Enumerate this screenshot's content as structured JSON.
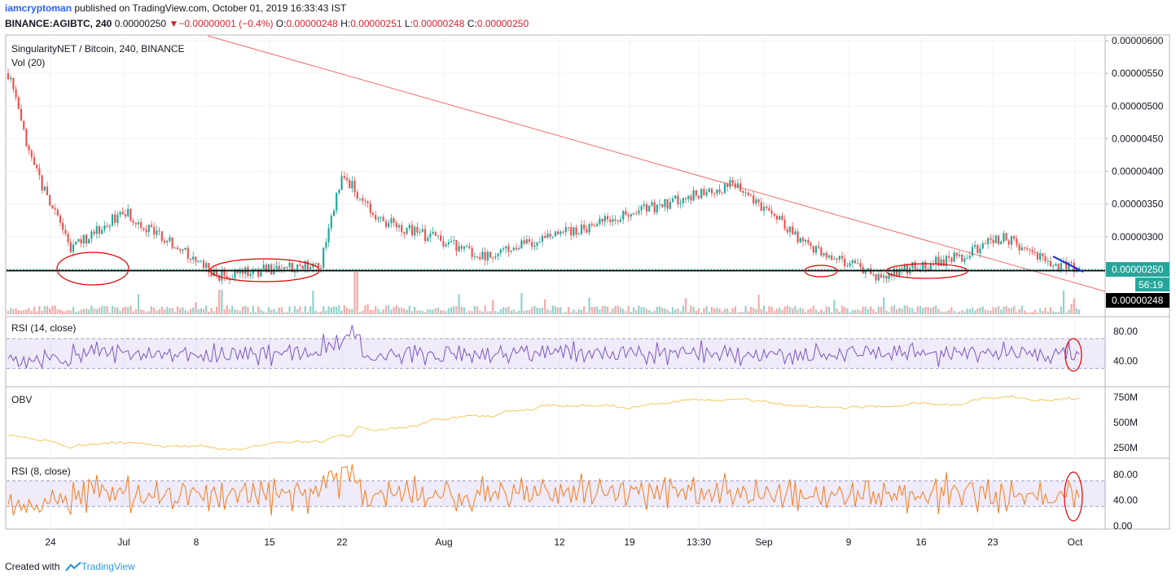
{
  "header": {
    "user": "iamcryptoman",
    "published": "published on TradingView.com, October 01, 2019 16:33:43 IST",
    "symbol": "BINANCE:AGIBTC, 240",
    "price": "0.00000250",
    "change_arrow": "▼",
    "change": "−0.00000001 (−0.4%)",
    "o_label": "O:",
    "o_val": "0.00000248",
    "h_label": "H:",
    "h_val": "0.00000251",
    "l_label": "L:",
    "l_val": "0.00000248",
    "c_label": "C:",
    "c_val": "0.00000250"
  },
  "main_pane": {
    "title": "SingularityNET / Bitcoin, 240, BINANCE",
    "vol_label": "Vol (20)",
    "last_price_badge": "0.00000250",
    "countdown_badge": "56:19",
    "support_badge": "0.00000248"
  },
  "rsi14": {
    "label": "RSI (14, close)"
  },
  "obv": {
    "label": "OBV"
  },
  "rsi8": {
    "label": "RSI (8, close)"
  },
  "footer": {
    "created_with": "Created with",
    "brand": "TradingView"
  },
  "colors": {
    "up": "#26a69a",
    "down": "#ef5350",
    "rsi14": "#7e57c2",
    "obv": "#f7c65a",
    "rsi8": "#f57c1f",
    "trend": "#ef5350",
    "annotation": "#e00000",
    "blue": "#1e22d6"
  },
  "chart_data": [
    {
      "type": "candlestick",
      "title": "SingularityNET / Bitcoin, 240, BINANCE",
      "x_ticks": [
        "24",
        "Jul",
        "8",
        "15",
        "22",
        "Aug",
        "12",
        "19",
        "13:30",
        "Sep",
        "9",
        "16",
        "23",
        "Oct"
      ],
      "y_ticks": [
        "0.00000600",
        "0.00000550",
        "0.00000500",
        "0.00000450",
        "0.00000400",
        "0.00000350",
        "0.00000300",
        "0.00000250"
      ],
      "ylim": [
        2.2e-06,
        6.1e-06
      ],
      "trend_line": {
        "from": [
          "Jun 19",
          5.8e-06
        ],
        "to": [
          "Oct 2",
          2.2e-06
        ]
      },
      "support_level": 2.48e-06,
      "last_price": 2.5e-06,
      "key_points": [
        {
          "x": "Jun 20",
          "close": 5.5e-06
        },
        {
          "x": "Jun 22",
          "close": 4.2e-06
        },
        {
          "x": "Jun 26",
          "close": 2.8e-06
        },
        {
          "x": "Jul 1",
          "close": 3.4e-06
        },
        {
          "x": "Jul 10",
          "close": 2.4e-06
        },
        {
          "x": "Jul 20",
          "close": 2.6e-06
        },
        {
          "x": "Jul 22",
          "close": 4e-06
        },
        {
          "x": "Jul 25",
          "close": 3.3e-06
        },
        {
          "x": "Aug 5",
          "close": 2.7e-06
        },
        {
          "x": "Aug 20",
          "close": 3.4e-06
        },
        {
          "x": "Aug 29",
          "close": 3.8e-06
        },
        {
          "x": "Sep 5",
          "close": 2.9e-06
        },
        {
          "x": "Sep 12",
          "close": 2.4e-06
        },
        {
          "x": "Sep 20",
          "close": 2.7e-06
        },
        {
          "x": "Sep 24",
          "close": 3e-06
        },
        {
          "x": "Sep 28",
          "close": 2.65e-06
        },
        {
          "x": "Oct 1",
          "close": 2.5e-06
        }
      ]
    },
    {
      "type": "line",
      "title": "RSI (14, close)",
      "y_ticks": [
        "80.00",
        "40.00"
      ],
      "ylim": [
        10,
        95
      ],
      "band": [
        30,
        70
      ]
    },
    {
      "type": "line",
      "title": "OBV",
      "y_ticks": [
        "750M",
        "500M",
        "250M"
      ],
      "ylim": [
        200,
        800
      ]
    },
    {
      "type": "line",
      "title": "RSI (8, close)",
      "y_ticks": [
        "80.00",
        "40.00",
        "0.00"
      ],
      "ylim": [
        0,
        100
      ],
      "band": [
        30,
        70
      ]
    }
  ]
}
